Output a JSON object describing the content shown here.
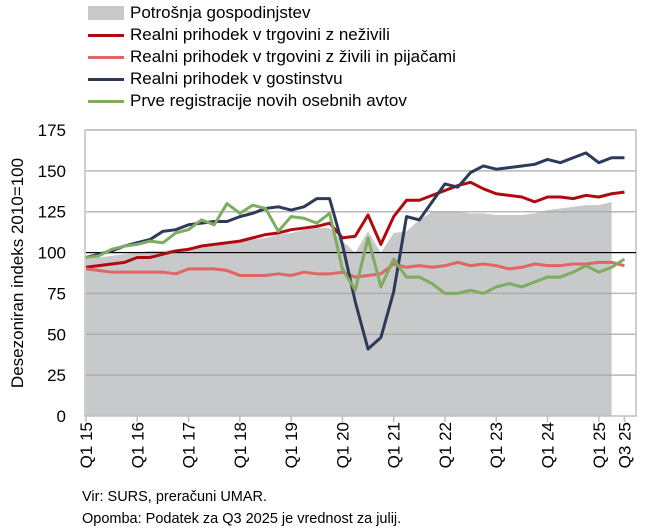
{
  "chart_data": {
    "type": "line",
    "ylabel": "Desezoniran indeks 2010=100",
    "ylim": [
      0,
      175
    ],
    "yticks": [
      0,
      25,
      50,
      75,
      100,
      125,
      150,
      175
    ],
    "reference_line": 100,
    "grid": true,
    "legend_position": "top",
    "x_tick_labels": [
      "Q1 15",
      "Q1 16",
      "Q1 17",
      "Q1 18",
      "Q1 19",
      "Q1 20",
      "Q1 21",
      "Q1 22",
      "Q1 23",
      "Q1 24",
      "Q1 25",
      "Q3 25"
    ],
    "x_tick_indices": [
      0,
      4,
      8,
      12,
      16,
      20,
      24,
      28,
      32,
      36,
      40,
      42
    ],
    "series": [
      {
        "name": "Potrošnja gospodinjstev",
        "kind": "area",
        "color": "#c8c9cb",
        "values": [
          96,
          97,
          98,
          99,
          100,
          101,
          101,
          102,
          103,
          104,
          105,
          106,
          107,
          108,
          109,
          111,
          112,
          114,
          115,
          115,
          107,
          100,
          113,
          100,
          112,
          113,
          120,
          125,
          125,
          125,
          124,
          124,
          123,
          123,
          123,
          124,
          126,
          127,
          128,
          129,
          129,
          131
        ]
      },
      {
        "name": "Realni prihodek v trgovini z neživili",
        "kind": "line",
        "color": "#b00a10",
        "values": [
          91,
          92,
          93,
          94,
          97,
          97,
          99,
          101,
          102,
          104,
          105,
          106,
          107,
          109,
          111,
          112,
          114,
          115,
          116,
          118,
          109,
          110,
          123,
          105,
          122,
          132,
          132,
          135,
          138,
          141,
          143,
          139,
          136,
          135,
          134,
          131,
          134,
          134,
          133,
          135,
          134,
          136,
          137
        ]
      },
      {
        "name": "Realni prihodek v trgovini z živili in pijačami",
        "kind": "line",
        "color": "#e06666",
        "values": [
          90,
          89,
          88,
          88,
          88,
          88,
          88,
          87,
          90,
          90,
          90,
          89,
          86,
          86,
          86,
          87,
          86,
          88,
          87,
          87,
          88,
          85,
          86,
          87,
          93,
          91,
          92,
          91,
          92,
          94,
          92,
          93,
          92,
          90,
          91,
          93,
          92,
          92,
          93,
          93,
          94,
          94,
          92
        ]
      },
      {
        "name": "Realni prihodek v gostinstvu",
        "kind": "line",
        "color": "#2e3a59",
        "values": [
          97,
          99,
          101,
          104,
          106,
          108,
          113,
          114,
          117,
          118,
          119,
          119,
          122,
          124,
          127,
          128,
          126,
          128,
          133,
          133,
          105,
          70,
          41,
          48,
          76,
          122,
          120,
          131,
          142,
          140,
          149,
          153,
          151,
          152,
          153,
          154,
          157,
          155,
          158,
          161,
          155,
          158,
          158
        ]
      },
      {
        "name": "Prve registracije novih osebnih avtov",
        "kind": "line",
        "color": "#7fac5e",
        "values": [
          97,
          98,
          102,
          104,
          105,
          107,
          106,
          112,
          114,
          120,
          117,
          130,
          124,
          129,
          127,
          113,
          122,
          121,
          118,
          124,
          90,
          77,
          109,
          79,
          96,
          85,
          85,
          81,
          75,
          75,
          77,
          75,
          79,
          81,
          79,
          82,
          85,
          85,
          88,
          92,
          88,
          91,
          96
        ]
      }
    ]
  },
  "footer": {
    "source": "Vir: SURS, preračuni UMAR.",
    "note": "Opomba: Podatek za Q3 2025 je vrednost za julij."
  }
}
